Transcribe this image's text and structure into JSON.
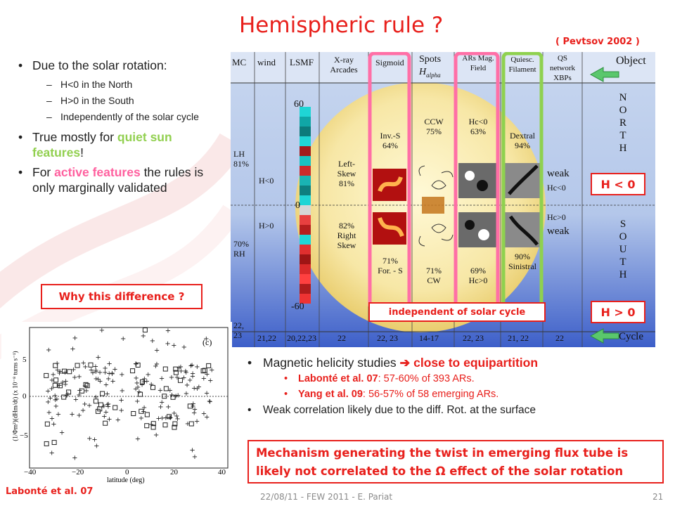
{
  "slide": {
    "title": "Hemispheric rule ?",
    "reference": "( Pevtsov 2002 )",
    "footer": "22/08/11 -  FEW 2011 - E. Pariat",
    "page_number": "21"
  },
  "left_bullets": {
    "b1": "Due to the solar rotation:",
    "b1_sub1": "H<0 in the North",
    "b1_sub2": "H>0 in the South",
    "b1_sub3": "Independently of the solar cycle",
    "b2_pre": "True mostly for ",
    "b2_hl": "quiet sun features",
    "b2_post": "!",
    "b3_pre": "For ",
    "b3_hl": "active features",
    "b3_post": " the rules is only marginally validated"
  },
  "why_box": "Why this difference ?",
  "figure": {
    "headers": [
      "MC",
      "wind",
      "LSMF",
      "X-ray Arcades",
      "Sigmoid",
      "Spots",
      "H",
      "alpha",
      "ARs Mag. Field",
      "Quiesc. Filament",
      "QS network XBPs",
      "Object"
    ],
    "north_letters": [
      "N",
      "O",
      "R",
      "T",
      "H"
    ],
    "south_letters": [
      "S",
      "O",
      "U",
      "T",
      "H"
    ],
    "scale": [
      "60",
      "0",
      "-60"
    ],
    "cells": {
      "lh": "LH\n81%",
      "hlt0_left": "H<0",
      "hgt0_left": "H>0",
      "rh": "70%\nRH",
      "left_skew": "Left-\nSkew\n81%",
      "right_skew": "82%\nRight\nSkew",
      "inv_s": "Inv.-S\n64%",
      "for_s": "71%\nFor. - S",
      "ccw": "CCW\n75%",
      "cw": "71%\nCW",
      "hc_lt0": "Hc<0\n63%",
      "hc_gt0": "69%\nHc>0",
      "dextral": "Dextral\n94%",
      "sinistral": "90%\nSinistral",
      "weak_n": "weak",
      "hc_lt0_r": "Hc<0",
      "hc_gt0_r": "Hc>0",
      "weak_s": "weak"
    },
    "cycle": [
      "22,\n23",
      "21,22",
      "20,22,23",
      "22",
      "22, 23",
      "14-17",
      "22, 23",
      "21, 22",
      "22",
      "Cycle"
    ],
    "h_neg_label": "H < 0",
    "h_pos_label": "H > 0",
    "independent_label": "independent of solar cycle"
  },
  "right_bullets": {
    "r1_pre": "Magnetic helicity studies ",
    "r1_arrow": "➔",
    "r1_hl": "close to equipartition",
    "r1a_ref": "Labonté et al. 07",
    "r1a_txt": ": 57-60% of 393 ARs.",
    "r1b_ref": "Yang et al. 09",
    "r1b_txt": ": 56-57% of 58 emerging ARs.",
    "r2": "Weak correlation likely due to the diff. Rot. at the surface"
  },
  "mechanism": {
    "line1": "Mechanism generating the twist in emerging flux tube is",
    "line2_pre": "likely not correlated to the ",
    "omega": "Ω",
    "line2_post": " effect of the solar rotation"
  },
  "scatter_plot": {
    "panel": "(c)",
    "ylabel": "(1/Φm²)(dHm/dt)  (x 10⁻⁸ turns s⁻¹)",
    "xlabel": "latitude (deg)",
    "xticks": [
      "−40",
      "−20",
      "0",
      "20",
      "40"
    ],
    "yticks": [
      "5",
      "0",
      "−5"
    ],
    "caption": "Labonté et al. 07"
  }
}
